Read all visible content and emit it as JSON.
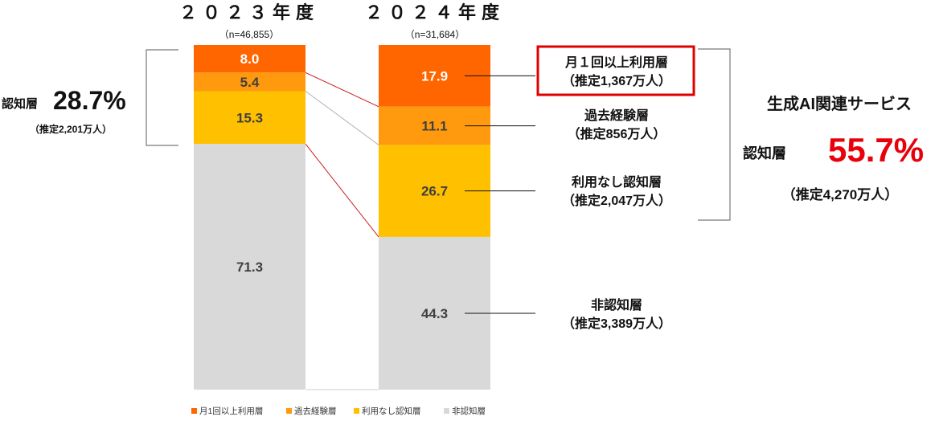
{
  "chart_data": {
    "type": "bar",
    "stacked": true,
    "categories": [
      "２０２３年度",
      "２０２４年度"
    ],
    "sample_sizes": [
      "（n=46,855）",
      "（n=31,684）"
    ],
    "series": [
      {
        "name": "月1回以上利用層",
        "color": "#ff6600",
        "values": [
          8.0,
          17.9
        ]
      },
      {
        "name": "過去経験層",
        "color": "#ff9a0e",
        "values": [
          5.4,
          11.1
        ]
      },
      {
        "name": "利用なし認知層",
        "color": "#ffc000",
        "values": [
          15.3,
          26.7
        ]
      },
      {
        "name": "非認知層",
        "color": "#d9d9d9",
        "values": [
          71.3,
          44.3
        ]
      }
    ],
    "ylim": [
      0,
      100
    ],
    "legend_position": "bottom",
    "annotations_2024": [
      {
        "line1": "月１回以上利用層",
        "line2": "（推定1,367万人）",
        "highlighted": true
      },
      {
        "line1": "過去経験層",
        "line2": "（推定856万人）",
        "highlighted": false
      },
      {
        "line1": "利用なし認知層",
        "line2": "（推定2,047万人）",
        "highlighted": false
      },
      {
        "line1": "非認知層",
        "line2": "（推定3,389万人）",
        "highlighted": false
      }
    ],
    "awareness_2023": {
      "label": "認知層",
      "percent": "28.7%",
      "estimate": "（推定2,201万人）"
    },
    "awareness_2024": {
      "title": "生成AI関連サービス",
      "label": "認知層",
      "percent": "55.7%",
      "estimate": "（推定4,270万人）"
    },
    "colors": {
      "highlight_border": "#e00000",
      "connector_red": "#cc1f1f",
      "connector_gray": "#b3b3b3",
      "label_dark": "#404040"
    }
  }
}
